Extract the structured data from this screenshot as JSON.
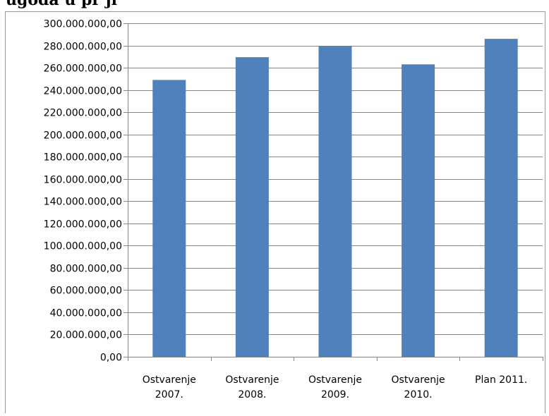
{
  "heading_visible_fragment": "ugoda u pr ji",
  "chart_data": {
    "type": "bar",
    "categories": [
      [
        "Ostvarenje",
        "2007."
      ],
      [
        "Ostvarenje",
        "2008."
      ],
      [
        "Ostvarenje",
        "2009."
      ],
      [
        "Ostvarenje",
        "2010."
      ],
      [
        "Plan 2011."
      ]
    ],
    "values": [
      249000000,
      269500000,
      279700000,
      263000000,
      286000000
    ],
    "ylim": [
      0,
      300000000
    ],
    "ytick_step": 20000000,
    "ytick_labels": [
      "0,00",
      "20.000.000,00",
      "40.000.000,00",
      "60.000.000,00",
      "80.000.000,00",
      "100.000.000,00",
      "120.000.000,00",
      "140.000.000,00",
      "160.000.000,00",
      "180.000.000,00",
      "200.000.000,00",
      "220.000.000,00",
      "240.000.000,00",
      "260.000.000,00",
      "280.000.000,00",
      "300.000.000,00"
    ],
    "grid": true,
    "bar_color": "#4f81bd",
    "grid_color": "#868686",
    "title": "",
    "xlabel": "",
    "ylabel": ""
  }
}
